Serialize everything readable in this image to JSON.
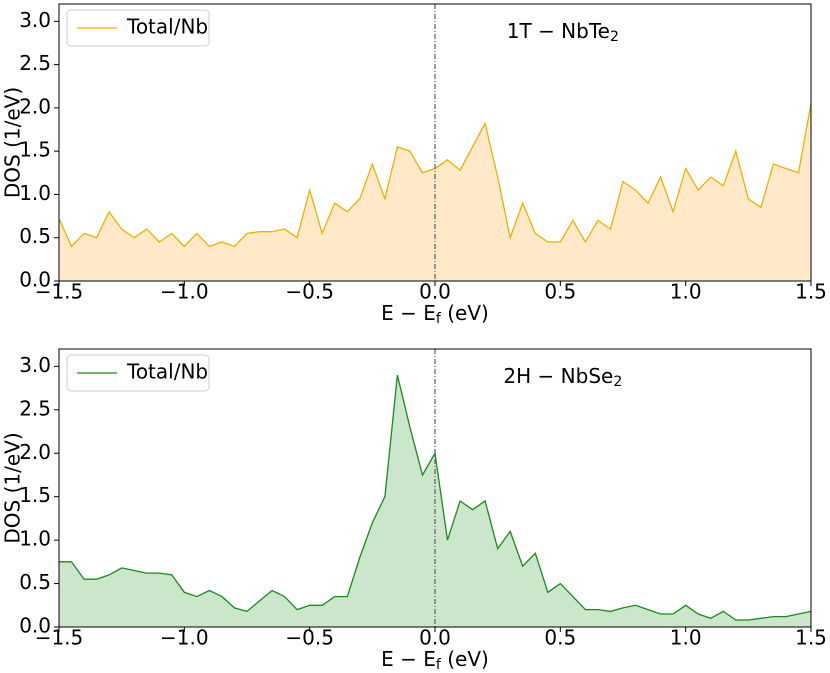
{
  "chart_data": [
    {
      "type": "line",
      "fill_area": true,
      "annotation": {
        "text": "1T − NbTe",
        "sub": "2"
      },
      "xlabel": {
        "main": "E − E",
        "sub": "f",
        "tail": " (eV)"
      },
      "ylabel": "DOS (1/eV)",
      "legend": "upper left",
      "vline_x": 0,
      "x": [
        -1.5,
        -1.45,
        -1.4,
        -1.35,
        -1.3,
        -1.25,
        -1.2,
        -1.15,
        -1.1,
        -1.05,
        -1.0,
        -0.95,
        -0.9,
        -0.85,
        -0.8,
        -0.75,
        -0.7,
        -0.65,
        -0.6,
        -0.55,
        -0.5,
        -0.45,
        -0.4,
        -0.35,
        -0.3,
        -0.25,
        -0.2,
        -0.15,
        -0.1,
        -0.05,
        0,
        0.05,
        0.1,
        0.15,
        0.2,
        0.25,
        0.3,
        0.35,
        0.4,
        0.45,
        0.5,
        0.55,
        0.6,
        0.65,
        0.7,
        0.75,
        0.8,
        0.85,
        0.9,
        0.95,
        1.0,
        1.05,
        1.1,
        1.15,
        1.2,
        1.25,
        1.3,
        1.35,
        1.4,
        1.45,
        1.5
      ],
      "series": [
        {
          "name": "Total/Nb",
          "color": "#f0b000",
          "fill": "#ffe9c8",
          "values": [
            0.72,
            0.4,
            0.55,
            0.5,
            0.8,
            0.6,
            0.5,
            0.6,
            0.45,
            0.55,
            0.4,
            0.55,
            0.4,
            0.45,
            0.4,
            0.55,
            0.57,
            0.57,
            0.6,
            0.5,
            1.05,
            0.55,
            0.9,
            0.8,
            0.95,
            1.35,
            0.95,
            1.55,
            1.5,
            1.25,
            1.3,
            1.4,
            1.28,
            1.55,
            1.82,
            1.2,
            0.5,
            0.9,
            0.55,
            0.45,
            0.45,
            0.7,
            0.45,
            0.7,
            0.6,
            1.15,
            1.05,
            0.9,
            1.2,
            0.8,
            1.3,
            1.05,
            1.2,
            1.1,
            1.5,
            0.95,
            0.85,
            1.35,
            1.3,
            1.25,
            2.05
          ]
        }
      ],
      "xlim": [
        -1.5,
        1.5
      ],
      "xticks": [
        {
          "value": -1.5,
          "label": "−1.5"
        },
        {
          "value": -1,
          "label": "−1.0"
        },
        {
          "value": -0.5,
          "label": "−0.5"
        },
        {
          "value": 0,
          "label": "0.0"
        },
        0.5,
        {
          "value": 1,
          "label": "1.0"
        },
        1.5
      ],
      "ylim": [
        0,
        3.2
      ],
      "yticks": [
        {
          "value": 0,
          "label": "0.0"
        },
        0.5,
        {
          "value": 1,
          "label": "1.0"
        },
        1.5,
        {
          "value": 2,
          "label": "2.0"
        },
        2.5,
        {
          "value": 3,
          "label": "3.0"
        }
      ]
    },
    {
      "type": "line",
      "fill_area": true,
      "annotation": {
        "text": "2H − NbSe",
        "sub": "2"
      },
      "xlabel": {
        "main": "E − E",
        "sub": "f",
        "tail": " (eV)"
      },
      "ylabel": "DOS (1/eV)",
      "legend": "upper left",
      "vline_x": 0,
      "x": [
        -1.5,
        -1.45,
        -1.4,
        -1.35,
        -1.3,
        -1.25,
        -1.2,
        -1.15,
        -1.1,
        -1.05,
        -1.0,
        -0.95,
        -0.9,
        -0.85,
        -0.8,
        -0.75,
        -0.7,
        -0.65,
        -0.6,
        -0.55,
        -0.5,
        -0.45,
        -0.4,
        -0.35,
        -0.3,
        -0.25,
        -0.2,
        -0.15,
        -0.1,
        -0.05,
        0,
        0.05,
        0.1,
        0.15,
        0.2,
        0.25,
        0.3,
        0.35,
        0.4,
        0.45,
        0.5,
        0.55,
        0.6,
        0.65,
        0.7,
        0.75,
        0.8,
        0.85,
        0.9,
        0.95,
        1.0,
        1.05,
        1.1,
        1.15,
        1.2,
        1.25,
        1.3,
        1.35,
        1.4,
        1.45,
        1.5
      ],
      "series": [
        {
          "name": "Total/Nb",
          "color": "#1a8a1a",
          "fill": "#cce6cc",
          "values": [
            0.75,
            0.75,
            0.55,
            0.55,
            0.6,
            0.68,
            0.65,
            0.62,
            0.62,
            0.6,
            0.4,
            0.35,
            0.42,
            0.35,
            0.22,
            0.18,
            0.3,
            0.42,
            0.35,
            0.2,
            0.25,
            0.25,
            0.35,
            0.35,
            0.8,
            1.2,
            1.5,
            2.9,
            2.3,
            1.75,
            2.0,
            1.0,
            1.45,
            1.35,
            1.45,
            0.9,
            1.1,
            0.7,
            0.85,
            0.4,
            0.5,
            0.35,
            0.2,
            0.2,
            0.18,
            0.22,
            0.25,
            0.2,
            0.15,
            0.15,
            0.25,
            0.15,
            0.1,
            0.18,
            0.08,
            0.08,
            0.1,
            0.12,
            0.12,
            0.15,
            0.18
          ]
        }
      ],
      "xlim": [
        -1.5,
        1.5
      ],
      "xticks": [
        {
          "value": -1.5,
          "label": "−1.5"
        },
        {
          "value": -1,
          "label": "−1.0"
        },
        {
          "value": -0.5,
          "label": "−0.5"
        },
        {
          "value": 0,
          "label": "0.0"
        },
        0.5,
        {
          "value": 1,
          "label": "1.0"
        },
        1.5
      ],
      "ylim": [
        0,
        3.2
      ],
      "yticks": [
        {
          "value": 0,
          "label": "0.0"
        },
        0.5,
        {
          "value": 1,
          "label": "1.0"
        },
        1.5,
        {
          "value": 2,
          "label": "2.0"
        },
        2.5,
        {
          "value": 3,
          "label": "3.0"
        }
      ]
    }
  ]
}
